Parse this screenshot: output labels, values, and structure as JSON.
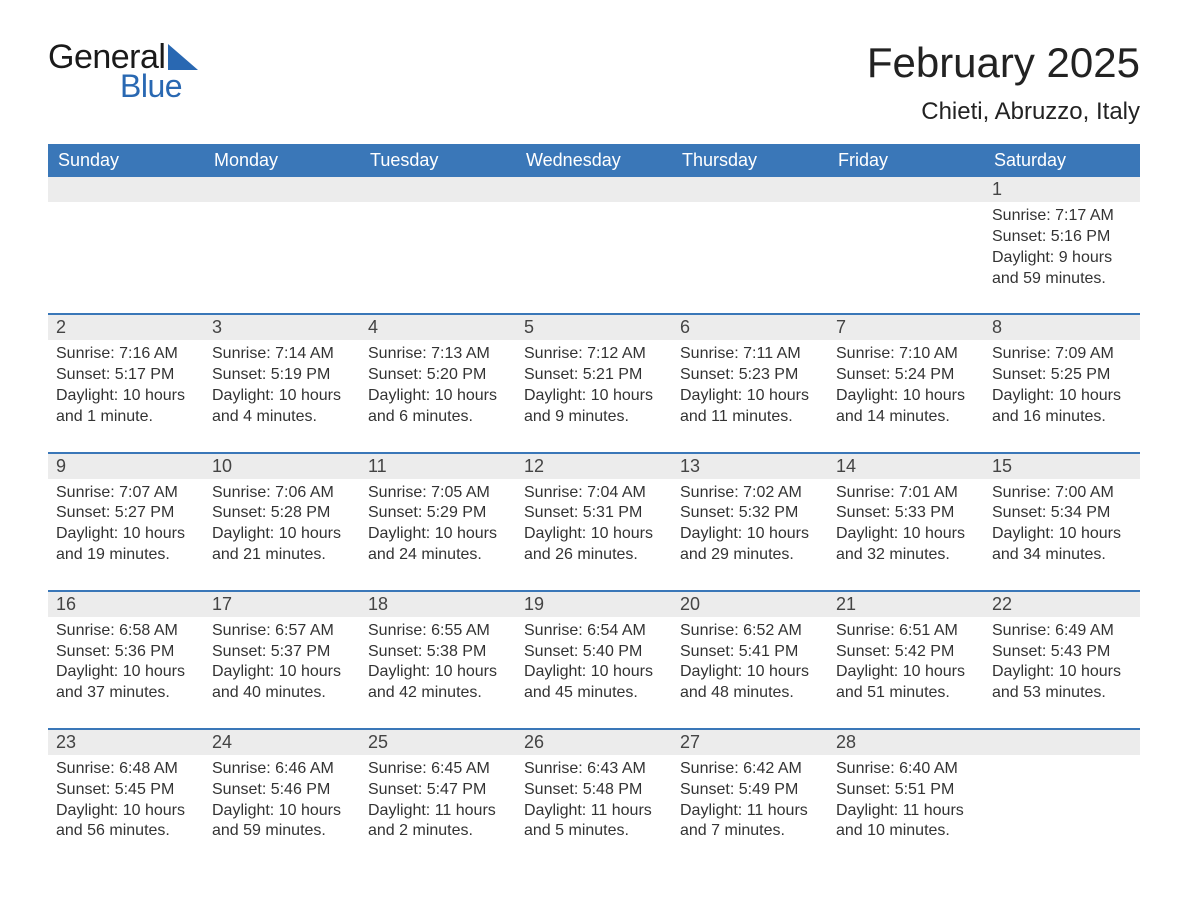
{
  "logo": {
    "general": "General",
    "blue": "Blue",
    "tri_color": "#2968b2"
  },
  "title": "February 2025",
  "location": "Chieti, Abruzzo, Italy",
  "header_bg": "#3a77b8",
  "day_header_bg": "#ececec",
  "columns": [
    "Sunday",
    "Monday",
    "Tuesday",
    "Wednesday",
    "Thursday",
    "Friday",
    "Saturday"
  ],
  "weeks": [
    [
      null,
      null,
      null,
      null,
      null,
      null,
      {
        "n": "1",
        "sunrise": "Sunrise: 7:17 AM",
        "sunset": "Sunset: 5:16 PM",
        "daylight": "Daylight: 9 hours and 59 minutes."
      }
    ],
    [
      {
        "n": "2",
        "sunrise": "Sunrise: 7:16 AM",
        "sunset": "Sunset: 5:17 PM",
        "daylight": "Daylight: 10 hours and 1 minute."
      },
      {
        "n": "3",
        "sunrise": "Sunrise: 7:14 AM",
        "sunset": "Sunset: 5:19 PM",
        "daylight": "Daylight: 10 hours and 4 minutes."
      },
      {
        "n": "4",
        "sunrise": "Sunrise: 7:13 AM",
        "sunset": "Sunset: 5:20 PM",
        "daylight": "Daylight: 10 hours and 6 minutes."
      },
      {
        "n": "5",
        "sunrise": "Sunrise: 7:12 AM",
        "sunset": "Sunset: 5:21 PM",
        "daylight": "Daylight: 10 hours and 9 minutes."
      },
      {
        "n": "6",
        "sunrise": "Sunrise: 7:11 AM",
        "sunset": "Sunset: 5:23 PM",
        "daylight": "Daylight: 10 hours and 11 minutes."
      },
      {
        "n": "7",
        "sunrise": "Sunrise: 7:10 AM",
        "sunset": "Sunset: 5:24 PM",
        "daylight": "Daylight: 10 hours and 14 minutes."
      },
      {
        "n": "8",
        "sunrise": "Sunrise: 7:09 AM",
        "sunset": "Sunset: 5:25 PM",
        "daylight": "Daylight: 10 hours and 16 minutes."
      }
    ],
    [
      {
        "n": "9",
        "sunrise": "Sunrise: 7:07 AM",
        "sunset": "Sunset: 5:27 PM",
        "daylight": "Daylight: 10 hours and 19 minutes."
      },
      {
        "n": "10",
        "sunrise": "Sunrise: 7:06 AM",
        "sunset": "Sunset: 5:28 PM",
        "daylight": "Daylight: 10 hours and 21 minutes."
      },
      {
        "n": "11",
        "sunrise": "Sunrise: 7:05 AM",
        "sunset": "Sunset: 5:29 PM",
        "daylight": "Daylight: 10 hours and 24 minutes."
      },
      {
        "n": "12",
        "sunrise": "Sunrise: 7:04 AM",
        "sunset": "Sunset: 5:31 PM",
        "daylight": "Daylight: 10 hours and 26 minutes."
      },
      {
        "n": "13",
        "sunrise": "Sunrise: 7:02 AM",
        "sunset": "Sunset: 5:32 PM",
        "daylight": "Daylight: 10 hours and 29 minutes."
      },
      {
        "n": "14",
        "sunrise": "Sunrise: 7:01 AM",
        "sunset": "Sunset: 5:33 PM",
        "daylight": "Daylight: 10 hours and 32 minutes."
      },
      {
        "n": "15",
        "sunrise": "Sunrise: 7:00 AM",
        "sunset": "Sunset: 5:34 PM",
        "daylight": "Daylight: 10 hours and 34 minutes."
      }
    ],
    [
      {
        "n": "16",
        "sunrise": "Sunrise: 6:58 AM",
        "sunset": "Sunset: 5:36 PM",
        "daylight": "Daylight: 10 hours and 37 minutes."
      },
      {
        "n": "17",
        "sunrise": "Sunrise: 6:57 AM",
        "sunset": "Sunset: 5:37 PM",
        "daylight": "Daylight: 10 hours and 40 minutes."
      },
      {
        "n": "18",
        "sunrise": "Sunrise: 6:55 AM",
        "sunset": "Sunset: 5:38 PM",
        "daylight": "Daylight: 10 hours and 42 minutes."
      },
      {
        "n": "19",
        "sunrise": "Sunrise: 6:54 AM",
        "sunset": "Sunset: 5:40 PM",
        "daylight": "Daylight: 10 hours and 45 minutes."
      },
      {
        "n": "20",
        "sunrise": "Sunrise: 6:52 AM",
        "sunset": "Sunset: 5:41 PM",
        "daylight": "Daylight: 10 hours and 48 minutes."
      },
      {
        "n": "21",
        "sunrise": "Sunrise: 6:51 AM",
        "sunset": "Sunset: 5:42 PM",
        "daylight": "Daylight: 10 hours and 51 minutes."
      },
      {
        "n": "22",
        "sunrise": "Sunrise: 6:49 AM",
        "sunset": "Sunset: 5:43 PM",
        "daylight": "Daylight: 10 hours and 53 minutes."
      }
    ],
    [
      {
        "n": "23",
        "sunrise": "Sunrise: 6:48 AM",
        "sunset": "Sunset: 5:45 PM",
        "daylight": "Daylight: 10 hours and 56 minutes."
      },
      {
        "n": "24",
        "sunrise": "Sunrise: 6:46 AM",
        "sunset": "Sunset: 5:46 PM",
        "daylight": "Daylight: 10 hours and 59 minutes."
      },
      {
        "n": "25",
        "sunrise": "Sunrise: 6:45 AM",
        "sunset": "Sunset: 5:47 PM",
        "daylight": "Daylight: 11 hours and 2 minutes."
      },
      {
        "n": "26",
        "sunrise": "Sunrise: 6:43 AM",
        "sunset": "Sunset: 5:48 PM",
        "daylight": "Daylight: 11 hours and 5 minutes."
      },
      {
        "n": "27",
        "sunrise": "Sunrise: 6:42 AM",
        "sunset": "Sunset: 5:49 PM",
        "daylight": "Daylight: 11 hours and 7 minutes."
      },
      {
        "n": "28",
        "sunrise": "Sunrise: 6:40 AM",
        "sunset": "Sunset: 5:51 PM",
        "daylight": "Daylight: 11 hours and 10 minutes."
      },
      null
    ]
  ]
}
